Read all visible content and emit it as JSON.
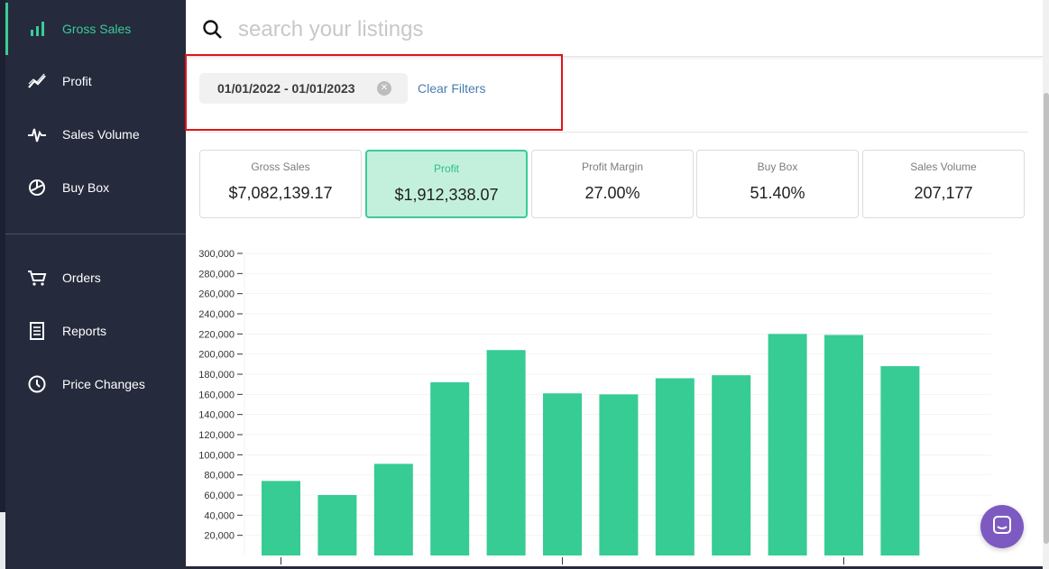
{
  "sidebar": {
    "items": [
      {
        "label": "Gross Sales",
        "icon": "bar-chart-icon",
        "active": true
      },
      {
        "label": "Profit",
        "icon": "trend-line-icon"
      },
      {
        "label": "Sales Volume",
        "icon": "pulse-icon"
      },
      {
        "label": "Buy Box",
        "icon": "pie-chart-icon"
      },
      {
        "label": "Orders",
        "icon": "cart-icon"
      },
      {
        "label": "Reports",
        "icon": "document-icon"
      },
      {
        "label": "Price Changes",
        "icon": "clock-icon"
      }
    ]
  },
  "search": {
    "placeholder": "search your listings",
    "value": ""
  },
  "filters": {
    "date_range": "01/01/2022 - 01/01/2023",
    "clear_label": "Clear Filters"
  },
  "metrics": [
    {
      "title": "Gross Sales",
      "value": "$7,082,139.17"
    },
    {
      "title": "Profit",
      "value": "$1,912,338.07",
      "active": true
    },
    {
      "title": "Profit Margin",
      "value": "27.00%"
    },
    {
      "title": "Buy Box",
      "value": "51.40%"
    },
    {
      "title": "Sales Volume",
      "value": "207,177"
    }
  ],
  "colors": {
    "accent": "#3bcc97",
    "sidebar_bg": "#252a3c",
    "highlight": "#e0141b",
    "chat": "#7d5ac1"
  },
  "chart_data": {
    "type": "bar",
    "values": [
      74000,
      60000,
      91000,
      172000,
      204000,
      161000,
      160000,
      176000,
      179000,
      220000,
      219000,
      188000
    ],
    "ylim": [
      0,
      300000
    ],
    "yticks": [
      20000,
      40000,
      60000,
      80000,
      100000,
      120000,
      140000,
      160000,
      180000,
      200000,
      220000,
      240000,
      260000,
      280000,
      300000
    ],
    "ytick_labels": [
      "20,000",
      "40,000",
      "60,000",
      "80,000",
      "100,000",
      "120,000",
      "140,000",
      "160,000",
      "180,000",
      "200,000",
      "220,000",
      "240,000",
      "260,000",
      "280,000",
      "300,000"
    ],
    "color": "#36cc93",
    "grid": true,
    "legend": "none"
  }
}
